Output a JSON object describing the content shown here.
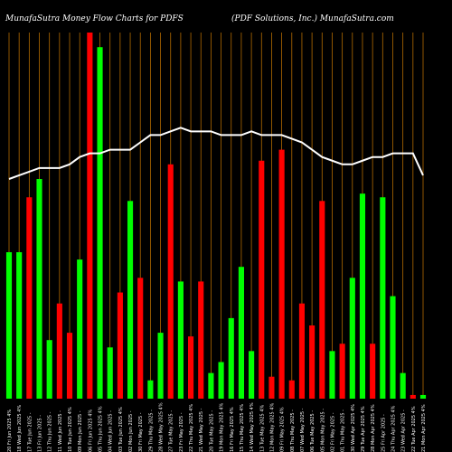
{
  "header": {
    "left_title": "MunafaSutra  Money Flow  Charts for PDFS",
    "right_title": "(PDF Solutions,  Inc.) MunafaSutra.com"
  },
  "colors": {
    "background": "#000000",
    "up": "#00ff00",
    "down": "#ff0000",
    "grid": "#b36b00",
    "line": "#ffffff",
    "label": "#ffffff"
  },
  "chart_data": {
    "type": "bar",
    "title": "MunafaSutra  Money Flow  Charts for PDFS",
    "subtitle": "(PDF Solutions,  Inc.) MunafaSutra.com",
    "ylim": [
      0,
      100
    ],
    "grid": "vertical",
    "x": [
      "20 Fri Jun 2025 4%",
      "18 Wed Jun 2025 4%",
      "17 Tue Jun 2025 -",
      "13 Fri Jun 2025 -",
      "12 Thu Jun 2025 -",
      "11 Wed Jun 2025 -",
      "10 Tue Jun 2025 4%",
      "09 Mon Jun 2025 -",
      "06 Fri Jun 2025 4%",
      "05 Thu Jun 2025 4%",
      "04 Wed Jun 2025 -",
      "03 Tue Jun 2025 4%",
      "02 Mon Jun 2025 -",
      "30 Fri May 2025 -",
      "29 Thu May 2025 -",
      "28 Wed May 2025 4%",
      "27 Tue May 2025 -",
      "23 Fri May 2025 -",
      "22 Thu May 2025 4%",
      "21 Wed May 2025 -",
      "20 Tue May 2025 -",
      "19 Mon May 2025 4%",
      "16 Fri May 2025 4%",
      "15 Thu May 2025 4%",
      "14 Wed May 2025 4%",
      "13 Tue May 2025 4%",
      "12 Mon May 2025 4%",
      "09 Fri May 2025 4%",
      "08 Thu May 2025 -",
      "07 Wed May 2025 -",
      "06 Tue May 2025 -",
      "05 Mon May 2025 -",
      "02 Fri May 2025 -",
      "01 Thu May 2025 -",
      "30 Wed Apr 2025 4%",
      "29 Tue Apr 2025 4%",
      "28 Mon Apr 2025 4%",
      "25 Fri Apr 2025 -",
      "24 Thu Apr 2025 4%",
      "23 Wed Apr 2025 -",
      "22 Tue Apr 2025 4%",
      "21 Mon Apr 2025 4%"
    ],
    "series": [
      {
        "type": "bar",
        "values": [
          40,
          40,
          55,
          60,
          16,
          26,
          18,
          38,
          100,
          96,
          14,
          29,
          54,
          33,
          5,
          18,
          64,
          32,
          17,
          32,
          7,
          10,
          22,
          36,
          13,
          65,
          6,
          68,
          5,
          26,
          20,
          54,
          13,
          15,
          33,
          56,
          15,
          55,
          28,
          7,
          1,
          1
        ],
        "colors": [
          "up",
          "up",
          "down",
          "up",
          "up",
          "down",
          "down",
          "up",
          "down",
          "up",
          "up",
          "down",
          "up",
          "down",
          "up",
          "up",
          "down",
          "up",
          "down",
          "down",
          "up",
          "up",
          "up",
          "up",
          "up",
          "down",
          "down",
          "down",
          "down",
          "down",
          "down",
          "down",
          "up",
          "down",
          "up",
          "up",
          "down",
          "up",
          "up",
          "up",
          "down",
          "up"
        ]
      },
      {
        "type": "line",
        "values": [
          60,
          61,
          62,
          63,
          63,
          63,
          64,
          66,
          67,
          67,
          68,
          68,
          68,
          70,
          72,
          72,
          73,
          74,
          73,
          73,
          73,
          72,
          72,
          72,
          73,
          72,
          72,
          72,
          71,
          70,
          68,
          66,
          65,
          64,
          64,
          65,
          66,
          66,
          67,
          67,
          67,
          61
        ]
      }
    ]
  }
}
